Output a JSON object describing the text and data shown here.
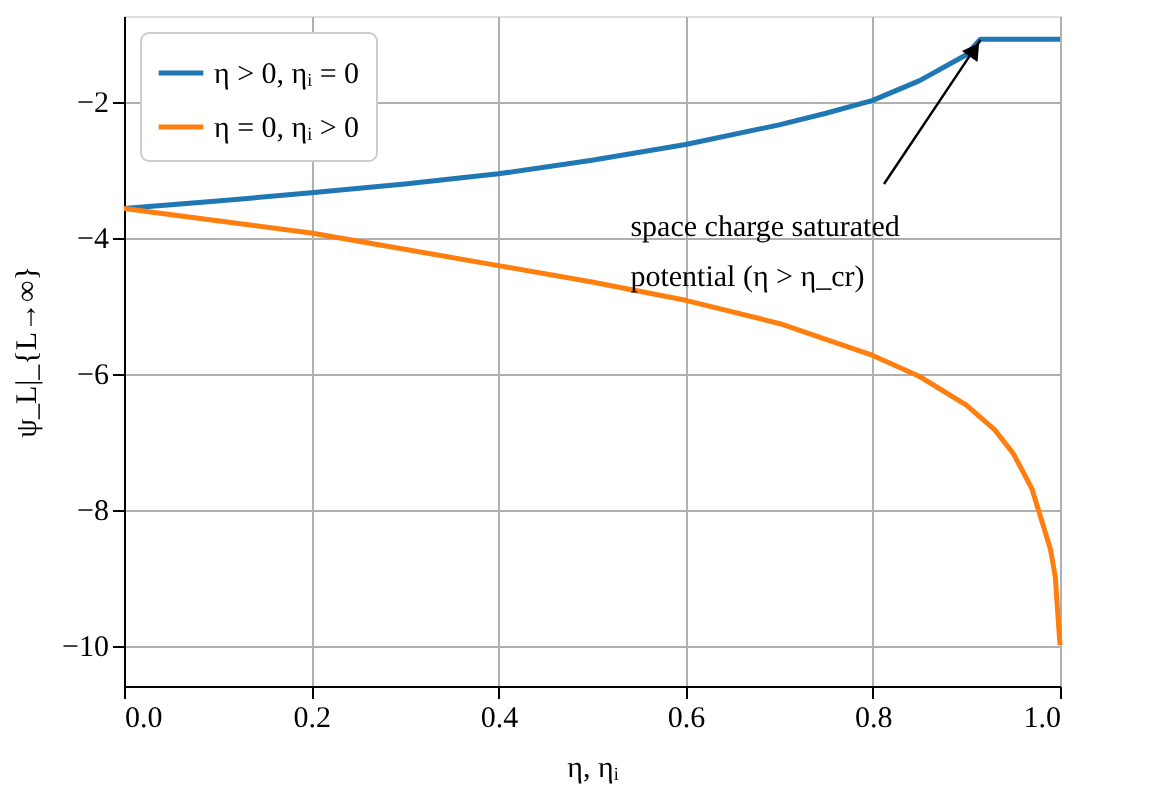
{
  "chart_data": {
    "type": "line",
    "xlabel": "η, ηᵢ",
    "ylabel": "ψ_L|_{L→∞}",
    "xlim": [
      0,
      1
    ],
    "ylim": [
      -10.6,
      -0.75
    ],
    "xticks": [
      {
        "value": 0,
        "label": "0.0"
      },
      {
        "value": 0.2,
        "label": "0.2"
      },
      {
        "value": 0.4,
        "label": "0.4"
      },
      {
        "value": 0.6,
        "label": "0.6"
      },
      {
        "value": 0.8,
        "label": "0.8"
      },
      {
        "value": 1,
        "label": "1.0"
      }
    ],
    "yticks": [
      {
        "value": -10,
        "label": "−10"
      },
      {
        "value": -8,
        "label": "−8"
      },
      {
        "value": -6,
        "label": "−6"
      },
      {
        "value": -4,
        "label": "−4"
      },
      {
        "value": -2,
        "label": "−2"
      }
    ],
    "grid": true,
    "legend": "top left",
    "line_style": "solid",
    "marker": "none",
    "series": [
      {
        "name": "η > 0, ηᵢ = 0",
        "color": "#1f77b4",
        "x": [
          0,
          0.1,
          0.2,
          0.3,
          0.4,
          0.5,
          0.6,
          0.7,
          0.75,
          0.8,
          0.85,
          0.9,
          0.915,
          1.0
        ],
        "values": [
          -3.58,
          -3.47,
          -3.35,
          -3.22,
          -3.07,
          -2.87,
          -2.64,
          -2.35,
          -2.18,
          -1.99,
          -1.7,
          -1.32,
          -1.09,
          -1.09
        ]
      },
      {
        "name": "η = 0, ηᵢ > 0",
        "color": "#ff7f0e",
        "x": [
          0,
          0.1,
          0.2,
          0.3,
          0.4,
          0.5,
          0.6,
          0.7,
          0.8,
          0.85,
          0.9,
          0.93,
          0.95,
          0.97,
          0.98,
          0.99,
          0.995,
          1.0
        ],
        "values": [
          -3.58,
          -3.76,
          -3.94,
          -4.18,
          -4.42,
          -4.66,
          -4.93,
          -5.27,
          -5.74,
          -6.05,
          -6.47,
          -6.83,
          -7.18,
          -7.7,
          -8.15,
          -8.6,
          -9.0,
          -10.0
        ]
      }
    ],
    "annotations": [
      {
        "text": "space charge saturated\npotential (η > η_cr)",
        "x": 0.915,
        "y": -1.1
      }
    ]
  }
}
